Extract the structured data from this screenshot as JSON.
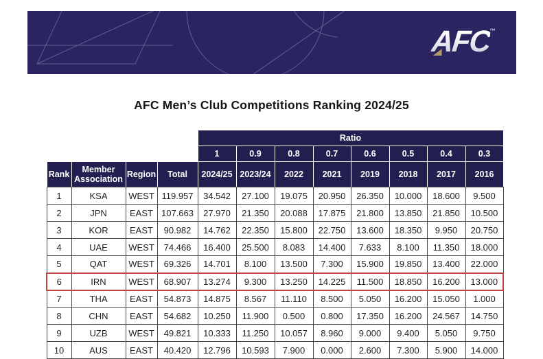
{
  "banner": {
    "logo_text": "AFC",
    "trademark": "™",
    "background_color": "#2a2561",
    "line_art_color": "#9a96c8",
    "gold_accent_color": "#b49a68"
  },
  "colors": {
    "header_navy": "#232051",
    "highlight_red": "#c0453f",
    "grid_border": "#474747",
    "text_dark": "#1f1f1f"
  },
  "chart_data": {
    "type": "table",
    "title": "AFC Men’s Club Competitions Ranking 2024/25",
    "ratio_label": "Ratio",
    "ratio_values": [
      "1",
      "0.9",
      "0.8",
      "0.7",
      "0.6",
      "0.5",
      "0.4",
      "0.3"
    ],
    "columns": [
      "Rank",
      "Member Association",
      "Region",
      "Total",
      "2024/25",
      "2023/24",
      "2022",
      "2021",
      "2019",
      "2018",
      "2017",
      "2016"
    ],
    "highlighted_rank": "6",
    "rows": [
      {
        "rank": "1",
        "member": "KSA",
        "region": "WEST",
        "total": "119.957",
        "values": [
          "34.542",
          "27.100",
          "19.075",
          "20.950",
          "26.350",
          "10.000",
          "18.600",
          "9.500"
        ]
      },
      {
        "rank": "2",
        "member": "JPN",
        "region": "EAST",
        "total": "107.663",
        "values": [
          "27.970",
          "21.350",
          "20.088",
          "17.875",
          "21.800",
          "13.850",
          "21.850",
          "10.500"
        ]
      },
      {
        "rank": "3",
        "member": "KOR",
        "region": "EAST",
        "total": "90.982",
        "values": [
          "14.762",
          "22.350",
          "15.800",
          "22.750",
          "13.600",
          "18.350",
          "9.950",
          "20.750"
        ]
      },
      {
        "rank": "4",
        "member": "UAE",
        "region": "WEST",
        "total": "74.466",
        "values": [
          "16.400",
          "25.500",
          "8.083",
          "14.400",
          "7.633",
          "8.100",
          "11.350",
          "18.000"
        ]
      },
      {
        "rank": "5",
        "member": "QAT",
        "region": "WEST",
        "total": "69.326",
        "values": [
          "14.701",
          "8.100",
          "13.500",
          "7.300",
          "15.900",
          "19.850",
          "13.400",
          "22.000"
        ]
      },
      {
        "rank": "6",
        "member": "IRN",
        "region": "WEST",
        "total": "68.907",
        "values": [
          "13.274",
          "9.300",
          "13.250",
          "14.225",
          "11.500",
          "18.850",
          "16.200",
          "13.000"
        ]
      },
      {
        "rank": "7",
        "member": "THA",
        "region": "EAST",
        "total": "54.873",
        "values": [
          "14.875",
          "8.567",
          "11.110",
          "8.500",
          "5.050",
          "16.200",
          "15.050",
          "1.000"
        ]
      },
      {
        "rank": "8",
        "member": "CHN",
        "region": "EAST",
        "total": "54.682",
        "values": [
          "10.250",
          "11.900",
          "0.500",
          "0.800",
          "17.350",
          "16.200",
          "24.567",
          "14.750"
        ]
      },
      {
        "rank": "9",
        "member": "UZB",
        "region": "WEST",
        "total": "49.821",
        "values": [
          "10.333",
          "11.250",
          "10.057",
          "8.960",
          "9.000",
          "9.400",
          "5.050",
          "9.750"
        ]
      },
      {
        "rank": "10",
        "member": "AUS",
        "region": "EAST",
        "total": "40.420",
        "values": [
          "12.796",
          "10.593",
          "7.900",
          "0.000",
          "2.600",
          "7.300",
          "5.900",
          "14.000"
        ]
      }
    ]
  }
}
